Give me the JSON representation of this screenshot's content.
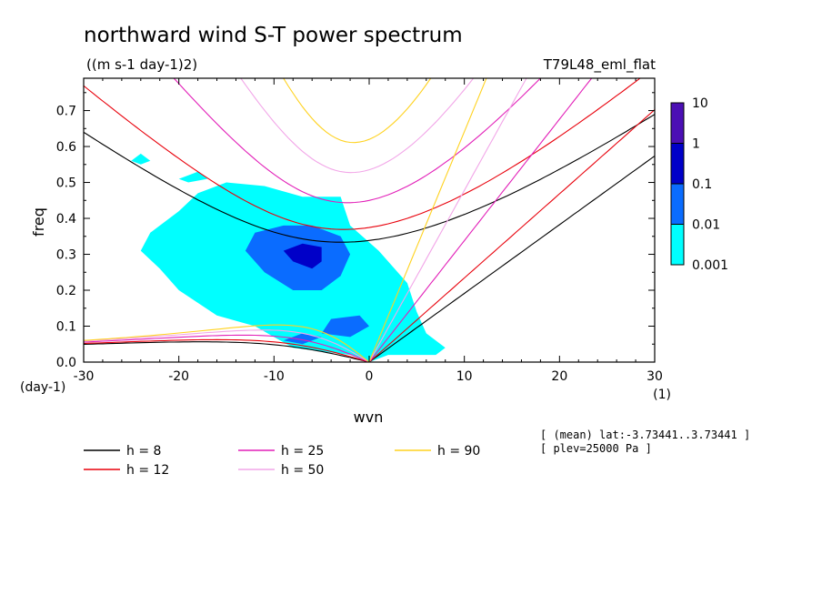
{
  "chart_data": {
    "type": "heatmap",
    "title": "northward wind S-T power spectrum",
    "subtitle": "((m s-1 day-1)2)",
    "dataset": "T79L48_eml_flat",
    "xlabel": "wvn",
    "ylabel": "freq",
    "x_unit": "(1)",
    "y_unit": "(day-1)",
    "xlim": [
      -30,
      30
    ],
    "ylim": [
      0,
      0.79
    ],
    "x_ticks": [
      -30,
      -20,
      -10,
      0,
      10,
      20,
      30
    ],
    "x_tick_labels": [
      "-30",
      "-20",
      "-10",
      "0",
      "10",
      "20",
      "30"
    ],
    "y_ticks": [
      0.0,
      0.1,
      0.2,
      0.3,
      0.4,
      0.5,
      0.6,
      0.7
    ],
    "y_tick_labels": [
      "0.0",
      "0.1",
      "0.2",
      "0.3",
      "0.4",
      "0.5",
      "0.6",
      "0.7"
    ],
    "colorbar": {
      "labels": [
        "10",
        "1",
        "0.1",
        "0.01",
        "0.001"
      ],
      "levels": [
        0.001,
        0.01,
        0.1,
        1,
        10
      ],
      "colors": [
        "#00ffff",
        "#0a6cff",
        "#0000c8",
        "#4b0fb4"
      ]
    },
    "dispersion_curves": [
      {
        "label": "h =  8",
        "h": 8,
        "color": "#000000"
      },
      {
        "label": "h = 12",
        "h": 12,
        "color": "#e8000b"
      },
      {
        "label": "h = 25",
        "h": 25,
        "color": "#e21fb8"
      },
      {
        "label": "h = 50",
        "h": 50,
        "color": "#f2a6e8"
      },
      {
        "label": "h = 90",
        "h": 90,
        "color": "#ffd21f"
      }
    ],
    "contour_regions": [
      {
        "level": "0.001",
        "color": "#00ffff",
        "pts": [
          [
            -5,
            0.03
          ],
          [
            -8,
            0.04
          ],
          [
            -10,
            0.07
          ],
          [
            -12,
            0.1
          ],
          [
            -16,
            0.13
          ],
          [
            -20,
            0.2
          ],
          [
            -22,
            0.26
          ],
          [
            -24,
            0.31
          ],
          [
            -23,
            0.36
          ],
          [
            -20,
            0.42
          ],
          [
            -18,
            0.47
          ],
          [
            -15,
            0.5
          ],
          [
            -11,
            0.49
          ],
          [
            -7,
            0.46
          ],
          [
            -3,
            0.46
          ],
          [
            -2,
            0.38
          ],
          [
            1,
            0.31
          ],
          [
            4,
            0.22
          ],
          [
            5,
            0.14
          ],
          [
            6,
            0.08
          ],
          [
            8,
            0.04
          ],
          [
            7,
            0.02
          ],
          [
            2,
            0.02
          ],
          [
            0,
            0.0
          ],
          [
            -2,
            0.02
          ]
        ]
      },
      {
        "level": "0.001",
        "color": "#00ffff",
        "pts": [
          [
            -25,
            0.56
          ],
          [
            -24,
            0.58
          ],
          [
            -23,
            0.56
          ],
          [
            -24,
            0.55
          ]
        ]
      },
      {
        "level": "0.001",
        "color": "#00ffff",
        "pts": [
          [
            -20,
            0.51
          ],
          [
            -18,
            0.53
          ],
          [
            -17,
            0.51
          ],
          [
            -19,
            0.5
          ]
        ]
      },
      {
        "level": "0.01",
        "color": "#0a6cff",
        "pts": [
          [
            -11,
            0.25
          ],
          [
            -13,
            0.31
          ],
          [
            -12,
            0.36
          ],
          [
            -9,
            0.38
          ],
          [
            -6,
            0.38
          ],
          [
            -3,
            0.35
          ],
          [
            -2,
            0.3
          ],
          [
            -3,
            0.24
          ],
          [
            -5,
            0.2
          ],
          [
            -8,
            0.2
          ]
        ]
      },
      {
        "level": "0.01",
        "color": "#0a6cff",
        "pts": [
          [
            -5,
            0.08
          ],
          [
            -4,
            0.12
          ],
          [
            -1,
            0.13
          ],
          [
            0,
            0.1
          ],
          [
            -2,
            0.07
          ]
        ]
      },
      {
        "level": "0.01",
        "color": "#0a6cff",
        "pts": [
          [
            -9,
            0.06
          ],
          [
            -7,
            0.08
          ],
          [
            -5,
            0.07
          ],
          [
            -7,
            0.05
          ]
        ]
      },
      {
        "level": "0.1",
        "color": "#0000c8",
        "pts": [
          [
            -8,
            0.28
          ],
          [
            -9,
            0.31
          ],
          [
            -7,
            0.33
          ],
          [
            -5,
            0.32
          ],
          [
            -5,
            0.28
          ],
          [
            -6,
            0.26
          ]
        ]
      }
    ]
  },
  "legend": {
    "col1": [
      {
        "label": "h =  8",
        "color": "#000000"
      },
      {
        "label": "h = 12",
        "color": "#e8000b"
      }
    ],
    "col2": [
      {
        "label": "h = 25",
        "color": "#e21fb8"
      },
      {
        "label": "h = 50",
        "color": "#f2a6e8"
      }
    ],
    "col3": [
      {
        "label": "h = 90",
        "color": "#ffd21f"
      }
    ]
  },
  "info": {
    "line1": "[ (mean) lat:-3.73441..3.73441 ]",
    "line2": "[ plev=25000 Pa ]"
  }
}
